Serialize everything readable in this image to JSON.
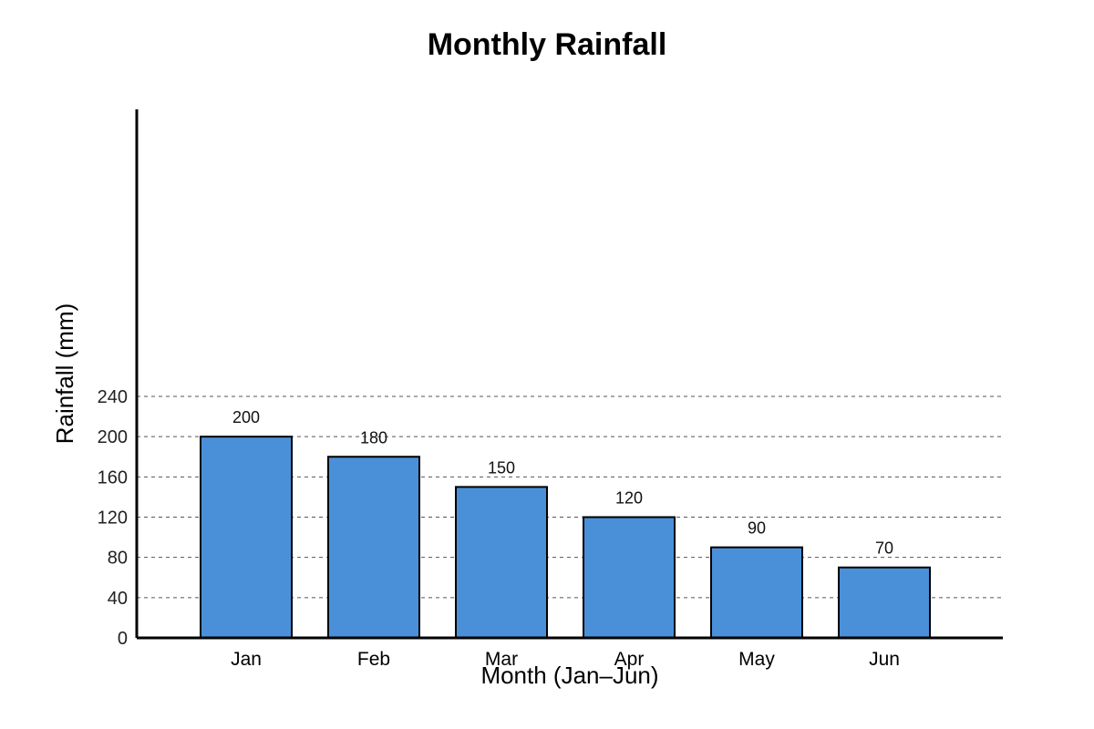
{
  "chart_data": {
    "type": "bar",
    "title": "Monthly Rainfall",
    "xlabel": "Month (Jan–Jun)",
    "ylabel": "Rainfall (mm)",
    "categories": [
      "Jan",
      "Feb",
      "Mar",
      "Apr",
      "May",
      "Jun"
    ],
    "values": [
      200,
      180,
      150,
      120,
      90,
      70
    ],
    "data_labels": [
      "200",
      "180",
      "150",
      "120",
      "90",
      "70"
    ],
    "y_ticks": [
      0,
      40,
      80,
      120,
      160,
      200,
      240
    ],
    "ylim": [
      0,
      240
    ],
    "grid": true,
    "bar_color": "#4a90d9"
  }
}
